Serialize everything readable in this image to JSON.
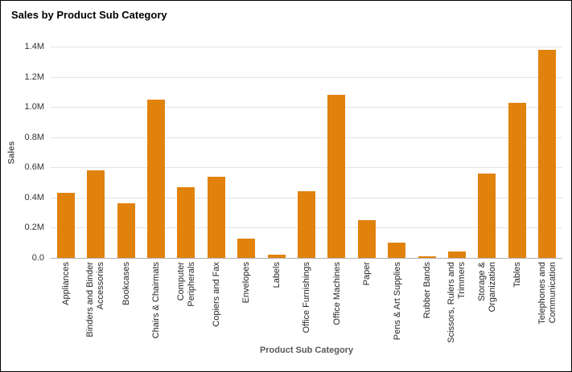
{
  "window": {
    "background": "#ffffff",
    "border_color": "#000000"
  },
  "chart_data": {
    "type": "bar",
    "title": "Sales by Product Sub Category",
    "xlabel": "Product Sub Category",
    "ylabel": "Sales",
    "unit": "M",
    "categories": [
      "Appliances",
      "Binders and Binder Accessories",
      "Bookcases",
      "Chairs & Chairmats",
      "Computer Peripherals",
      "Copiers and Fax",
      "Envelopes",
      "Labels",
      "Office Furnishings",
      "Office Machines",
      "Paper",
      "Pens & Art Supplies",
      "Rubber Bands",
      "Scissors, Rulers and Trimmers",
      "Storage & Organization",
      "Tables",
      "Telephones and Communication"
    ],
    "category_lines": [
      [
        "Appliances"
      ],
      [
        "Binders and Binder",
        "Accessories"
      ],
      [
        "Bookcases"
      ],
      [
        "Chairs & Chairmats"
      ],
      [
        "Computer",
        "Peripherals"
      ],
      [
        "Copiers and Fax"
      ],
      [
        "Envelopes"
      ],
      [
        "Labels"
      ],
      [
        "Office Furnishings"
      ],
      [
        "Office Machines"
      ],
      [
        "Paper"
      ],
      [
        "Pens & Art Supplies"
      ],
      [
        "Rubber Bands"
      ],
      [
        "Scissors, Rulers and",
        "Trimmers"
      ],
      [
        "Storage &",
        "Organization"
      ],
      [
        "Tables"
      ],
      [
        "Telephones and",
        "Communication"
      ]
    ],
    "values": [
      0.43,
      0.58,
      0.36,
      1.05,
      0.47,
      0.54,
      0.13,
      0.02,
      0.44,
      1.08,
      0.25,
      0.1,
      0.01,
      0.04,
      0.56,
      1.03,
      1.38
    ],
    "ylim": [
      0,
      1.4
    ],
    "ytick_labels": [
      "0.0",
      "0.2M",
      "0.4M",
      "0.6M",
      "0.8M",
      "1.0M",
      "1.2M",
      "1.4M"
    ],
    "grid": true,
    "legend": "none",
    "bar_color": "#E1820D",
    "gridline_color": "#e4e4e4",
    "axis_line_color": "#b0b0b0"
  }
}
